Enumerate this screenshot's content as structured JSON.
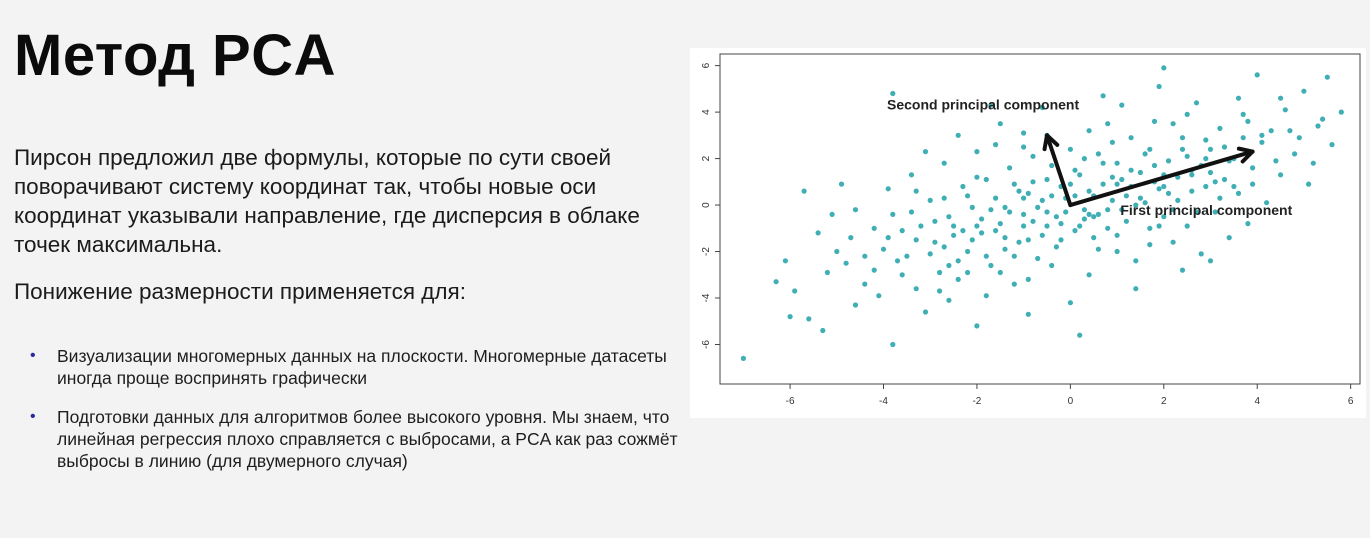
{
  "slide": {
    "title": "Метод PCA",
    "paragraph": "Пирсон предложил две формулы, которые по сути своей поворачивают систему координат так, чтобы новые оси координат указывали направление, где дисперсия в облаке точек максимальна.",
    "subheading": "Понижение размерности применяется для:",
    "bullets": [
      "Визуализации многомерных данных на плоскости. Многомерные датасеты иногда проще воспринять графически",
      "Подготовки данных для алгоритмов более высокого уровня. Мы знаем, что линейная регрессия плохо справляется с выбросами, а PCA как раз сожмёт выбросы в линию (для двумерного случая)"
    ]
  },
  "chart_data": {
    "type": "scatter",
    "xlim": [
      -7.5,
      6.2
    ],
    "ylim": [
      -7.7,
      6.5
    ],
    "xticks": [
      -6,
      -4,
      -2,
      0,
      2,
      4,
      6
    ],
    "yticks": [
      6,
      4,
      2,
      0,
      -2,
      -4,
      -6
    ],
    "point_color": "#2aa6ad",
    "points": [
      [
        -7.0,
        -6.6
      ],
      [
        -6.3,
        -3.3
      ],
      [
        -5.9,
        -3.7
      ],
      [
        -6.0,
        -4.8
      ],
      [
        -5.6,
        -4.9
      ],
      [
        -5.3,
        -5.4
      ],
      [
        -5.7,
        0.6
      ],
      [
        -5.4,
        -1.2
      ],
      [
        -5.1,
        -0.4
      ],
      [
        -4.9,
        0.9
      ],
      [
        -4.8,
        -2.5
      ],
      [
        -4.6,
        -4.3
      ],
      [
        -4.4,
        -3.4
      ],
      [
        -4.2,
        -2.8
      ],
      [
        -4.0,
        -1.9
      ],
      [
        -3.9,
        0.7
      ],
      [
        -3.8,
        -0.4
      ],
      [
        -3.8,
        -6.0
      ],
      [
        -3.6,
        -1.1
      ],
      [
        -3.5,
        -2.2
      ],
      [
        -3.4,
        1.3
      ],
      [
        -3.3,
        -3.6
      ],
      [
        -3.2,
        -0.9
      ],
      [
        -3.1,
        -4.6
      ],
      [
        -3.0,
        0.2
      ],
      [
        -2.9,
        -1.6
      ],
      [
        -2.8,
        -2.9
      ],
      [
        -2.7,
        1.8
      ],
      [
        -2.6,
        -0.5
      ],
      [
        -2.5,
        -1.3
      ],
      [
        -2.4,
        -3.2
      ],
      [
        -2.3,
        0.8
      ],
      [
        -2.2,
        -2.0
      ],
      [
        -2.1,
        -0.1
      ],
      [
        -2.0,
        2.3
      ],
      [
        -2.0,
        -5.2
      ],
      [
        -1.9,
        -1.2
      ],
      [
        -1.8,
        1.1
      ],
      [
        -1.7,
        -2.6
      ],
      [
        -1.6,
        0.3
      ],
      [
        -1.5,
        -0.8
      ],
      [
        -1.5,
        3.5
      ],
      [
        -1.4,
        -1.9
      ],
      [
        -1.3,
        1.6
      ],
      [
        -1.2,
        -3.4
      ],
      [
        -1.1,
        0.6
      ],
      [
        -1.0,
        -0.4
      ],
      [
        -1.0,
        2.5
      ],
      [
        -0.9,
        -1.5
      ],
      [
        -0.8,
        1.0
      ],
      [
        -0.7,
        -2.3
      ],
      [
        -0.6,
        0.2
      ],
      [
        -0.5,
        3.0
      ],
      [
        -0.5,
        -0.9
      ],
      [
        -0.4,
        1.7
      ],
      [
        -0.3,
        -1.8
      ],
      [
        -0.2,
        0.8
      ],
      [
        -0.1,
        -0.3
      ],
      [
        0.0,
        2.4
      ],
      [
        0.0,
        -4.2
      ],
      [
        0.1,
        -1.1
      ],
      [
        0.2,
        1.3
      ],
      [
        0.3,
        -0.6
      ],
      [
        0.4,
        3.2
      ],
      [
        0.5,
        0.4
      ],
      [
        0.6,
        -1.9
      ],
      [
        0.7,
        1.8
      ],
      [
        0.8,
        -0.2
      ],
      [
        0.9,
        2.7
      ],
      [
        1.0,
        -1.3
      ],
      [
        1.0,
        0.9
      ],
      [
        1.1,
        4.3
      ],
      [
        1.2,
        -0.7
      ],
      [
        1.3,
        1.5
      ],
      [
        1.4,
        -2.4
      ],
      [
        1.5,
        0.3
      ],
      [
        1.6,
        2.2
      ],
      [
        1.7,
        -1.0
      ],
      [
        1.8,
        3.6
      ],
      [
        1.9,
        0.7
      ],
      [
        2.0,
        -0.5
      ],
      [
        2.0,
        5.9
      ],
      [
        2.1,
        1.9
      ],
      [
        2.2,
        -1.6
      ],
      [
        2.3,
        0.2
      ],
      [
        2.4,
        2.9
      ],
      [
        2.5,
        -0.9
      ],
      [
        2.6,
        1.3
      ],
      [
        2.7,
        4.4
      ],
      [
        2.8,
        -2.1
      ],
      [
        2.9,
        0.8
      ],
      [
        3.0,
        2.4
      ],
      [
        3.1,
        -0.3
      ],
      [
        3.2,
        3.3
      ],
      [
        3.3,
        1.1
      ],
      [
        3.4,
        -1.4
      ],
      [
        3.5,
        2.0
      ],
      [
        3.6,
        0.5
      ],
      [
        3.7,
        3.9
      ],
      [
        3.8,
        -0.8
      ],
      [
        3.9,
        1.6
      ],
      [
        4.0,
        5.6
      ],
      [
        4.1,
        2.7
      ],
      [
        4.2,
        0.1
      ],
      [
        4.3,
        3.2
      ],
      [
        4.5,
        1.3
      ],
      [
        4.6,
        4.1
      ],
      [
        4.8,
        2.2
      ],
      [
        5.0,
        4.9
      ],
      [
        5.1,
        0.9
      ],
      [
        5.3,
        3.4
      ],
      [
        5.5,
        5.5
      ],
      [
        5.6,
        2.6
      ],
      [
        5.8,
        4.0
      ],
      [
        -3.6,
        -3.0
      ],
      [
        -2.6,
        -4.1
      ],
      [
        -1.8,
        -3.9
      ],
      [
        -0.9,
        -4.7
      ],
      [
        0.4,
        -3.0
      ],
      [
        1.4,
        -3.6
      ],
      [
        2.4,
        -2.8
      ],
      [
        -4.6,
        -0.2
      ],
      [
        -3.1,
        2.3
      ],
      [
        -0.6,
        4.2
      ],
      [
        0.7,
        4.7
      ],
      [
        1.9,
        5.1
      ],
      [
        -1.7,
        4.3
      ],
      [
        -3.8,
        4.8
      ],
      [
        0.2,
        -5.6
      ],
      [
        3.0,
        -2.4
      ],
      [
        -2.7,
        -1.8
      ],
      [
        -2.4,
        -2.4
      ],
      [
        -2.1,
        -1.5
      ],
      [
        -1.9,
        -0.6
      ],
      [
        -1.6,
        -1.1
      ],
      [
        -1.3,
        -0.3
      ],
      [
        -1.1,
        -1.6
      ],
      [
        -0.8,
        -0.7
      ],
      [
        -0.6,
        -1.3
      ],
      [
        -0.3,
        -0.5
      ],
      [
        -0.1,
        0.3
      ],
      [
        0.2,
        -0.9
      ],
      [
        0.4,
        0.6
      ],
      [
        0.6,
        -0.4
      ],
      [
        0.9,
        0.2
      ],
      [
        1.1,
        -0.2
      ],
      [
        1.3,
        0.8
      ],
      [
        1.6,
        0.1
      ],
      [
        1.8,
        1.0
      ],
      [
        2.1,
        0.5
      ],
      [
        2.3,
        1.2
      ],
      [
        2.6,
        0.6
      ],
      [
        2.8,
        1.7
      ],
      [
        3.1,
        1.0
      ],
      [
        3.4,
        1.9
      ],
      [
        -2.5,
        -0.9
      ],
      [
        -2.2,
        0.4
      ],
      [
        -1.8,
        -2.2
      ],
      [
        -1.4,
        -0.1
      ],
      [
        -1.0,
        0.3
      ],
      [
        -0.7,
        -0.1
      ],
      [
        -0.4,
        0.4
      ],
      [
        0.1,
        1.5
      ],
      [
        0.3,
        -0.2
      ],
      [
        0.7,
        0.9
      ],
      [
        1.2,
        0.4
      ],
      [
        1.5,
        1.4
      ],
      [
        2.0,
        1.3
      ],
      [
        2.5,
        2.1
      ],
      [
        2.9,
        2.8
      ],
      [
        -3.3,
        -1.5
      ],
      [
        -2.9,
        -0.7
      ],
      [
        -2.0,
        -0.9
      ],
      [
        -1.2,
        -2.2
      ],
      [
        -0.4,
        -2.6
      ],
      [
        0.5,
        -1.4
      ],
      [
        1.0,
        -2.0
      ],
      [
        1.9,
        -0.9
      ],
      [
        2.7,
        -0.3
      ],
      [
        3.5,
        0.8
      ],
      [
        -4.2,
        -1.0
      ],
      [
        -3.7,
        -2.4
      ],
      [
        -3.3,
        0.6
      ],
      [
        -2.8,
        -3.7
      ],
      [
        -2.2,
        -2.9
      ],
      [
        -1.5,
        -2.9
      ],
      [
        -0.9,
        -3.2
      ],
      [
        -0.2,
        -1.5
      ],
      [
        0.8,
        -1.0
      ],
      [
        1.7,
        -1.7
      ],
      [
        2.2,
        -0.2
      ],
      [
        3.2,
        0.3
      ],
      [
        3.9,
        0.9
      ],
      [
        4.4,
        1.9
      ],
      [
        -1.6,
        2.6
      ],
      [
        -0.8,
        2.1
      ],
      [
        0.0,
        0.9
      ],
      [
        0.6,
        2.2
      ],
      [
        1.3,
        2.9
      ],
      [
        2.2,
        3.5
      ],
      [
        3.6,
        4.6
      ],
      [
        4.7,
        3.2
      ],
      [
        -5.0,
        -2.0
      ],
      [
        -4.4,
        -2.2
      ],
      [
        -3.9,
        -1.4
      ],
      [
        -3.4,
        -0.3
      ],
      [
        -2.7,
        0.3
      ],
      [
        -2.0,
        1.2
      ],
      [
        -1.2,
        0.9
      ],
      [
        -0.5,
        1.1
      ],
      [
        0.3,
        2.0
      ],
      [
        1.0,
        1.8
      ],
      [
        1.7,
        2.4
      ],
      [
        2.4,
        2.4
      ],
      [
        3.3,
        2.5
      ],
      [
        4.1,
        3.0
      ],
      [
        -1.0,
        -0.9
      ],
      [
        -0.2,
        -0.8
      ],
      [
        0.5,
        -0.5
      ],
      [
        1.4,
        0.0
      ],
      [
        -2.3,
        -1.1
      ],
      [
        -1.7,
        -0.2
      ],
      [
        -0.9,
        0.5
      ],
      [
        0.1,
        0.4
      ],
      [
        0.9,
        1.2
      ],
      [
        1.8,
        1.7
      ],
      [
        2.6,
        1.5
      ],
      [
        3.0,
        1.4
      ],
      [
        -3.0,
        -2.1
      ],
      [
        -2.6,
        -2.6
      ],
      [
        -1.4,
        -1.4
      ],
      [
        -0.5,
        -0.3
      ],
      [
        0.4,
        -0.4
      ],
      [
        1.1,
        1.1
      ],
      [
        2.0,
        0.8
      ],
      [
        2.9,
        2.0
      ],
      [
        -4.7,
        -1.4
      ],
      [
        -5.2,
        -2.9
      ],
      [
        -6.1,
        -2.4
      ],
      [
        -4.1,
        -3.9
      ],
      [
        4.9,
        2.9
      ],
      [
        5.4,
        3.7
      ],
      [
        5.2,
        1.8
      ],
      [
        4.5,
        4.6
      ],
      [
        3.7,
        2.9
      ],
      [
        -1.0,
        3.1
      ],
      [
        -2.4,
        3.0
      ],
      [
        0.8,
        3.5
      ],
      [
        2.5,
        3.9
      ],
      [
        3.8,
        3.6
      ]
    ],
    "arrows": [
      {
        "label": "First principal component",
        "from": [
          0.0,
          0.0
        ],
        "to": [
          3.9,
          2.3
        ]
      },
      {
        "label": "Second principal component",
        "from": [
          0.0,
          0.0
        ],
        "to": [
          -0.5,
          3.0
        ]
      }
    ]
  }
}
